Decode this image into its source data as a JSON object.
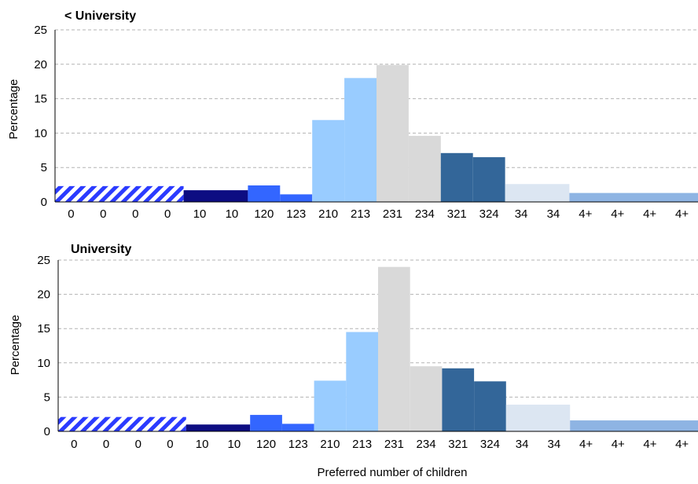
{
  "chart_data": [
    {
      "type": "bar",
      "title": "< University",
      "ylabel": "Percentage",
      "xlabel": "",
      "ylim": [
        0,
        25
      ],
      "yticks": [
        0,
        5,
        10,
        15,
        20,
        25
      ],
      "grid": true,
      "categories": [
        "0",
        "0",
        "0",
        "0",
        "10",
        "10",
        "120",
        "123",
        "210",
        "213",
        "231",
        "234",
        "321",
        "324",
        "34",
        "34",
        "4+",
        "4+",
        "4+",
        "4+"
      ],
      "groups": [
        {
          "label": "0",
          "start": 0,
          "span": 4,
          "value": 2.3,
          "color": "#2b3bff",
          "pattern": "hatched"
        },
        {
          "label": "10",
          "start": 4,
          "span": 2,
          "value": 1.7,
          "color": "#0d0d82"
        },
        {
          "label": "120",
          "start": 6,
          "span": 1,
          "value": 2.4,
          "color": "#3366ff"
        },
        {
          "label": "123",
          "start": 7,
          "span": 1,
          "value": 1.1,
          "color": "#3366ff"
        },
        {
          "label": "210",
          "start": 8,
          "span": 1,
          "value": 11.9,
          "color": "#99ccff"
        },
        {
          "label": "213",
          "start": 9,
          "span": 1,
          "value": 18.0,
          "color": "#99ccff"
        },
        {
          "label": "231",
          "start": 10,
          "span": 1,
          "value": 19.9,
          "color": "#d9d9d9"
        },
        {
          "label": "234",
          "start": 11,
          "span": 1,
          "value": 9.6,
          "color": "#d9d9d9"
        },
        {
          "label": "321",
          "start": 12,
          "span": 1,
          "value": 7.1,
          "color": "#336699"
        },
        {
          "label": "324",
          "start": 13,
          "span": 1,
          "value": 6.5,
          "color": "#336699"
        },
        {
          "label": "34",
          "start": 14,
          "span": 2,
          "value": 2.6,
          "color": "#dce6f2"
        },
        {
          "label": "4+",
          "start": 16,
          "span": 4,
          "value": 1.3,
          "color": "#8eb4e3"
        }
      ]
    },
    {
      "type": "bar",
      "title": "University",
      "ylabel": "Percentage",
      "xlabel": "Preferred number of children",
      "ylim": [
        0,
        25
      ],
      "yticks": [
        0,
        5,
        10,
        15,
        20,
        25
      ],
      "grid": true,
      "categories": [
        "0",
        "0",
        "0",
        "0",
        "10",
        "10",
        "120",
        "123",
        "210",
        "213",
        "231",
        "234",
        "321",
        "324",
        "34",
        "34",
        "4+",
        "4+",
        "4+",
        "4+"
      ],
      "groups": [
        {
          "label": "0",
          "start": 0,
          "span": 4,
          "value": 2.1,
          "color": "#2b3bff",
          "pattern": "hatched"
        },
        {
          "label": "10",
          "start": 4,
          "span": 2,
          "value": 1.0,
          "color": "#0d0d82"
        },
        {
          "label": "120",
          "start": 6,
          "span": 1,
          "value": 2.4,
          "color": "#3366ff"
        },
        {
          "label": "123",
          "start": 7,
          "span": 1,
          "value": 1.1,
          "color": "#3366ff"
        },
        {
          "label": "210",
          "start": 8,
          "span": 1,
          "value": 7.4,
          "color": "#99ccff"
        },
        {
          "label": "213",
          "start": 9,
          "span": 1,
          "value": 14.5,
          "color": "#99ccff"
        },
        {
          "label": "231",
          "start": 10,
          "span": 1,
          "value": 24.0,
          "color": "#d9d9d9"
        },
        {
          "label": "234",
          "start": 11,
          "span": 1,
          "value": 9.5,
          "color": "#d9d9d9"
        },
        {
          "label": "321",
          "start": 12,
          "span": 1,
          "value": 9.2,
          "color": "#336699"
        },
        {
          "label": "324",
          "start": 13,
          "span": 1,
          "value": 7.3,
          "color": "#336699"
        },
        {
          "label": "34",
          "start": 14,
          "span": 2,
          "value": 3.9,
          "color": "#dce6f2"
        },
        {
          "label": "4+",
          "start": 16,
          "span": 4,
          "value": 1.6,
          "color": "#8eb4e3"
        }
      ]
    }
  ]
}
